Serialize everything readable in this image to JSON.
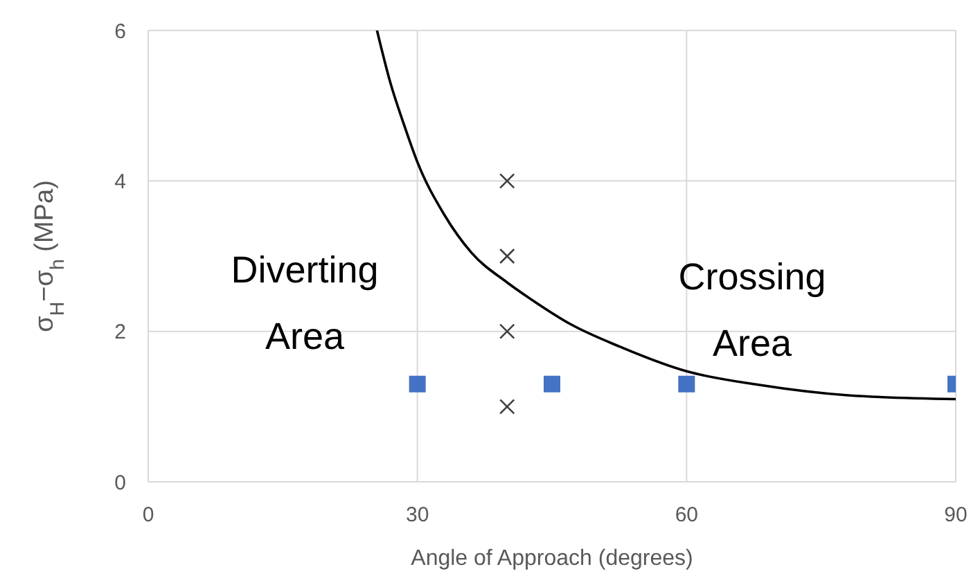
{
  "chart_data": {
    "type": "scatter",
    "xlabel": "Angle of Approach (degrees)",
    "ylabel": "σ$_{H}$−σ$_{h}$ (MPa)",
    "xlim": [
      0,
      90
    ],
    "xticks": [
      0,
      30,
      60,
      90
    ],
    "ylim": [
      0,
      6
    ],
    "yticks": [
      0,
      2,
      4,
      6
    ],
    "grid": true,
    "legend": false,
    "annotations": [
      "Diverting Area",
      "Crossing Area"
    ],
    "series": [
      {
        "marker": "square",
        "color": "#4472c4",
        "x": [
          30,
          45,
          60,
          90
        ],
        "values": [
          1.3,
          1.3,
          1.3,
          1.3
        ]
      },
      {
        "marker": "cross",
        "color": "#404040",
        "x": [
          40,
          40,
          40,
          40
        ],
        "values": [
          4,
          3,
          2,
          1
        ]
      },
      {
        "type": "line",
        "marker": "none",
        "line_style": "solid",
        "color": "#000000",
        "x": [
          25.5,
          27,
          28.5,
          30,
          33,
          36,
          40,
          43,
          47,
          52.5,
          60,
          68,
          78,
          90
        ],
        "values": [
          6,
          5.3,
          4.75,
          4.25,
          3.55,
          3.05,
          2.65,
          2.4,
          2.1,
          1.8,
          1.47,
          1.29,
          1.15,
          1.1
        ]
      }
    ]
  }
}
